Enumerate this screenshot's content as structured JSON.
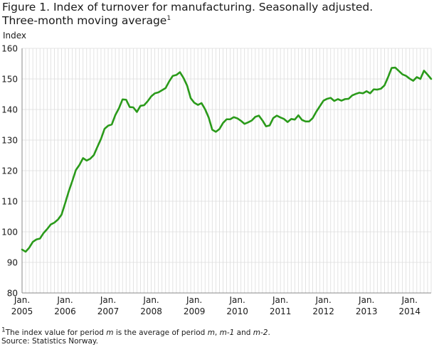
{
  "header": {
    "title_line1": "Figure 1. Index of turnover for manufacturing. Seasonally adjusted.",
    "title_line2": "Three-month moving average",
    "title_footnote_mark": "1"
  },
  "footer": {
    "note_mark": "1",
    "note_a": "The index value for period ",
    "note_b": "m",
    "note_c": " is the average of period ",
    "note_d": "m",
    "note_e": ", ",
    "note_f": "m-1",
    "note_g": " and ",
    "note_h": "m-2",
    "note_i": ".",
    "source": "Source: Statistics Norway."
  },
  "colors": {
    "line": "#2a9a1a",
    "grid": "#dcdcdc",
    "axis": "#888888"
  },
  "chart_data": {
    "type": "line",
    "title": "Figure 1. Index of turnover for manufacturing. Seasonally adjusted. Three-month moving average",
    "ylabel": "Index",
    "xlabel": "",
    "ylim": [
      80,
      160
    ],
    "yticks": [
      80,
      90,
      100,
      110,
      120,
      130,
      140,
      150,
      160
    ],
    "xlim": [
      0,
      114
    ],
    "xticks": [
      {
        "line1": "Jan.",
        "line2": "2005",
        "x": 0
      },
      {
        "line1": "Jan.",
        "line2": "2006",
        "x": 12
      },
      {
        "line1": "Jan.",
        "line2": "2007",
        "x": 24
      },
      {
        "line1": "Jan.",
        "line2": "2008",
        "x": 36
      },
      {
        "line1": "Jan.",
        "line2": "2009",
        "x": 48
      },
      {
        "line1": "Jan.",
        "line2": "2010",
        "x": 60
      },
      {
        "line1": "Jan.",
        "line2": "2011",
        "x": 72
      },
      {
        "line1": "Jan.",
        "line2": "2012",
        "x": 84
      },
      {
        "line1": "Jan.",
        "line2": "2013",
        "x": 96
      },
      {
        "line1": "Jan.",
        "line2": "2014",
        "x": 108
      }
    ],
    "grid": true,
    "series": [
      {
        "name": "Index of turnover for manufacturing",
        "start": "Jan. 2005",
        "frequency": "monthly",
        "values": [
          94.2,
          93.5,
          94.8,
          96.7,
          97.5,
          97.8,
          99.6,
          100.9,
          102.4,
          103.0,
          104.0,
          105.6,
          109.3,
          113.2,
          116.6,
          120.2,
          121.9,
          124.1,
          123.3,
          123.9,
          125.1,
          127.8,
          130.4,
          133.7,
          134.7,
          135.1,
          138.2,
          140.4,
          143.3,
          143.2,
          140.8,
          140.7,
          139.2,
          141.2,
          141.4,
          142.7,
          144.3,
          145.3,
          145.6,
          146.3,
          147.0,
          149.2,
          151.0,
          151.3,
          152.2,
          150.3,
          147.8,
          143.7,
          142.2,
          141.5,
          142.1,
          140.1,
          137.4,
          133.4,
          132.7,
          133.6,
          135.6,
          136.8,
          136.8,
          137.5,
          137.1,
          136.3,
          135.3,
          135.8,
          136.4,
          137.6,
          138.0,
          136.4,
          134.5,
          134.8,
          137.2,
          138.0,
          137.4,
          136.9,
          135.9,
          136.9,
          136.7,
          138.1,
          136.6,
          136.1,
          136.1,
          137.2,
          139.3,
          141.1,
          142.9,
          143.5,
          143.8,
          142.8,
          143.4,
          142.9,
          143.4,
          143.5,
          144.6,
          145.1,
          145.5,
          145.3,
          146.0,
          145.3,
          146.6,
          146.5,
          146.8,
          147.9,
          150.6,
          153.6,
          153.7,
          152.6,
          151.5,
          151.0,
          150.1,
          149.4,
          150.6,
          150.0,
          152.7,
          151.4,
          150.0
        ]
      }
    ]
  }
}
